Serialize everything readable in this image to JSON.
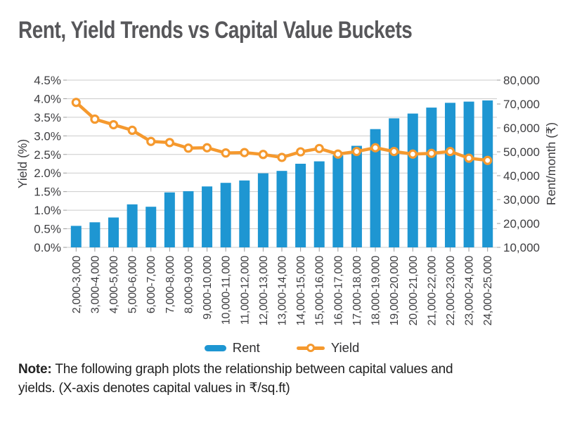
{
  "title": "Rent, Yield Trends vs Capital Value Buckets",
  "legend": {
    "rent": "Rent",
    "yield": "Yield"
  },
  "note": {
    "label": "Note:",
    "line1": "The following graph plots the relationship between capital values and",
    "line2": "yields. (X-axis denotes capital values in ₹/sq.ft)"
  },
  "colors": {
    "rent_bar": "#1e96d2",
    "yield_line": "#f5992e",
    "gridline": "#cbcbcb",
    "tick": "#9a9a9a",
    "axis_text": "#3e3e41"
  },
  "chart_data": {
    "type": "bar",
    "title": "Rent, Yield Trends vs Capital Value Buckets",
    "categories": [
      "2,000-3,000",
      "3,000-4,000",
      "4,000-5,000",
      "5,000-6,000",
      "6,000-7,000",
      "7,000-8,000",
      "8,000-9,000",
      "9,000-10,000",
      "10,000-11,000",
      "11,000-12,000",
      "12,000-13,000",
      "13,000-14,000",
      "14,000-15,000",
      "15,000-16,000",
      "16,000-17,000",
      "17,000-18,000",
      "18,000-19,000",
      "19,000-20,000",
      "20,000-21,000",
      "21,000-22,000",
      "22,000-23,000",
      "23,000-24,000",
      "24,000-25,000"
    ],
    "series": [
      {
        "name": "Rent",
        "type": "bar",
        "axis": "right",
        "values": [
          19000,
          20500,
          22500,
          28000,
          27000,
          33000,
          33500,
          35500,
          37000,
          38000,
          41000,
          42000,
          45000,
          46000,
          48500,
          52500,
          59500,
          64000,
          66000,
          68500,
          70500,
          71000,
          71500
        ]
      },
      {
        "name": "Yield",
        "type": "line",
        "axis": "left",
        "values": [
          3.9,
          3.45,
          3.3,
          3.15,
          2.85,
          2.82,
          2.67,
          2.68,
          2.54,
          2.55,
          2.5,
          2.42,
          2.57,
          2.66,
          2.51,
          2.58,
          2.68,
          2.58,
          2.51,
          2.53,
          2.58,
          2.4,
          2.34
        ]
      }
    ],
    "left_axis": {
      "label": "Yield (%)",
      "min": 0,
      "max": 4.5,
      "step": 0.5,
      "ticks": [
        "0.0%",
        "0.5%",
        "1.0%",
        "1.5%",
        "2.0%",
        "2.5%",
        "3.0%",
        "3.5%",
        "4.0%",
        "4.5%"
      ]
    },
    "right_axis": {
      "label": "Rent/month (₹)",
      "min": 10000,
      "max": 80000,
      "step": 10000,
      "ticks": [
        "10,000",
        "20,000",
        "30,000",
        "40,000",
        "50,000",
        "60,000",
        "70,000",
        "80,000"
      ]
    },
    "grid": true,
    "legend_position": "bottom"
  }
}
